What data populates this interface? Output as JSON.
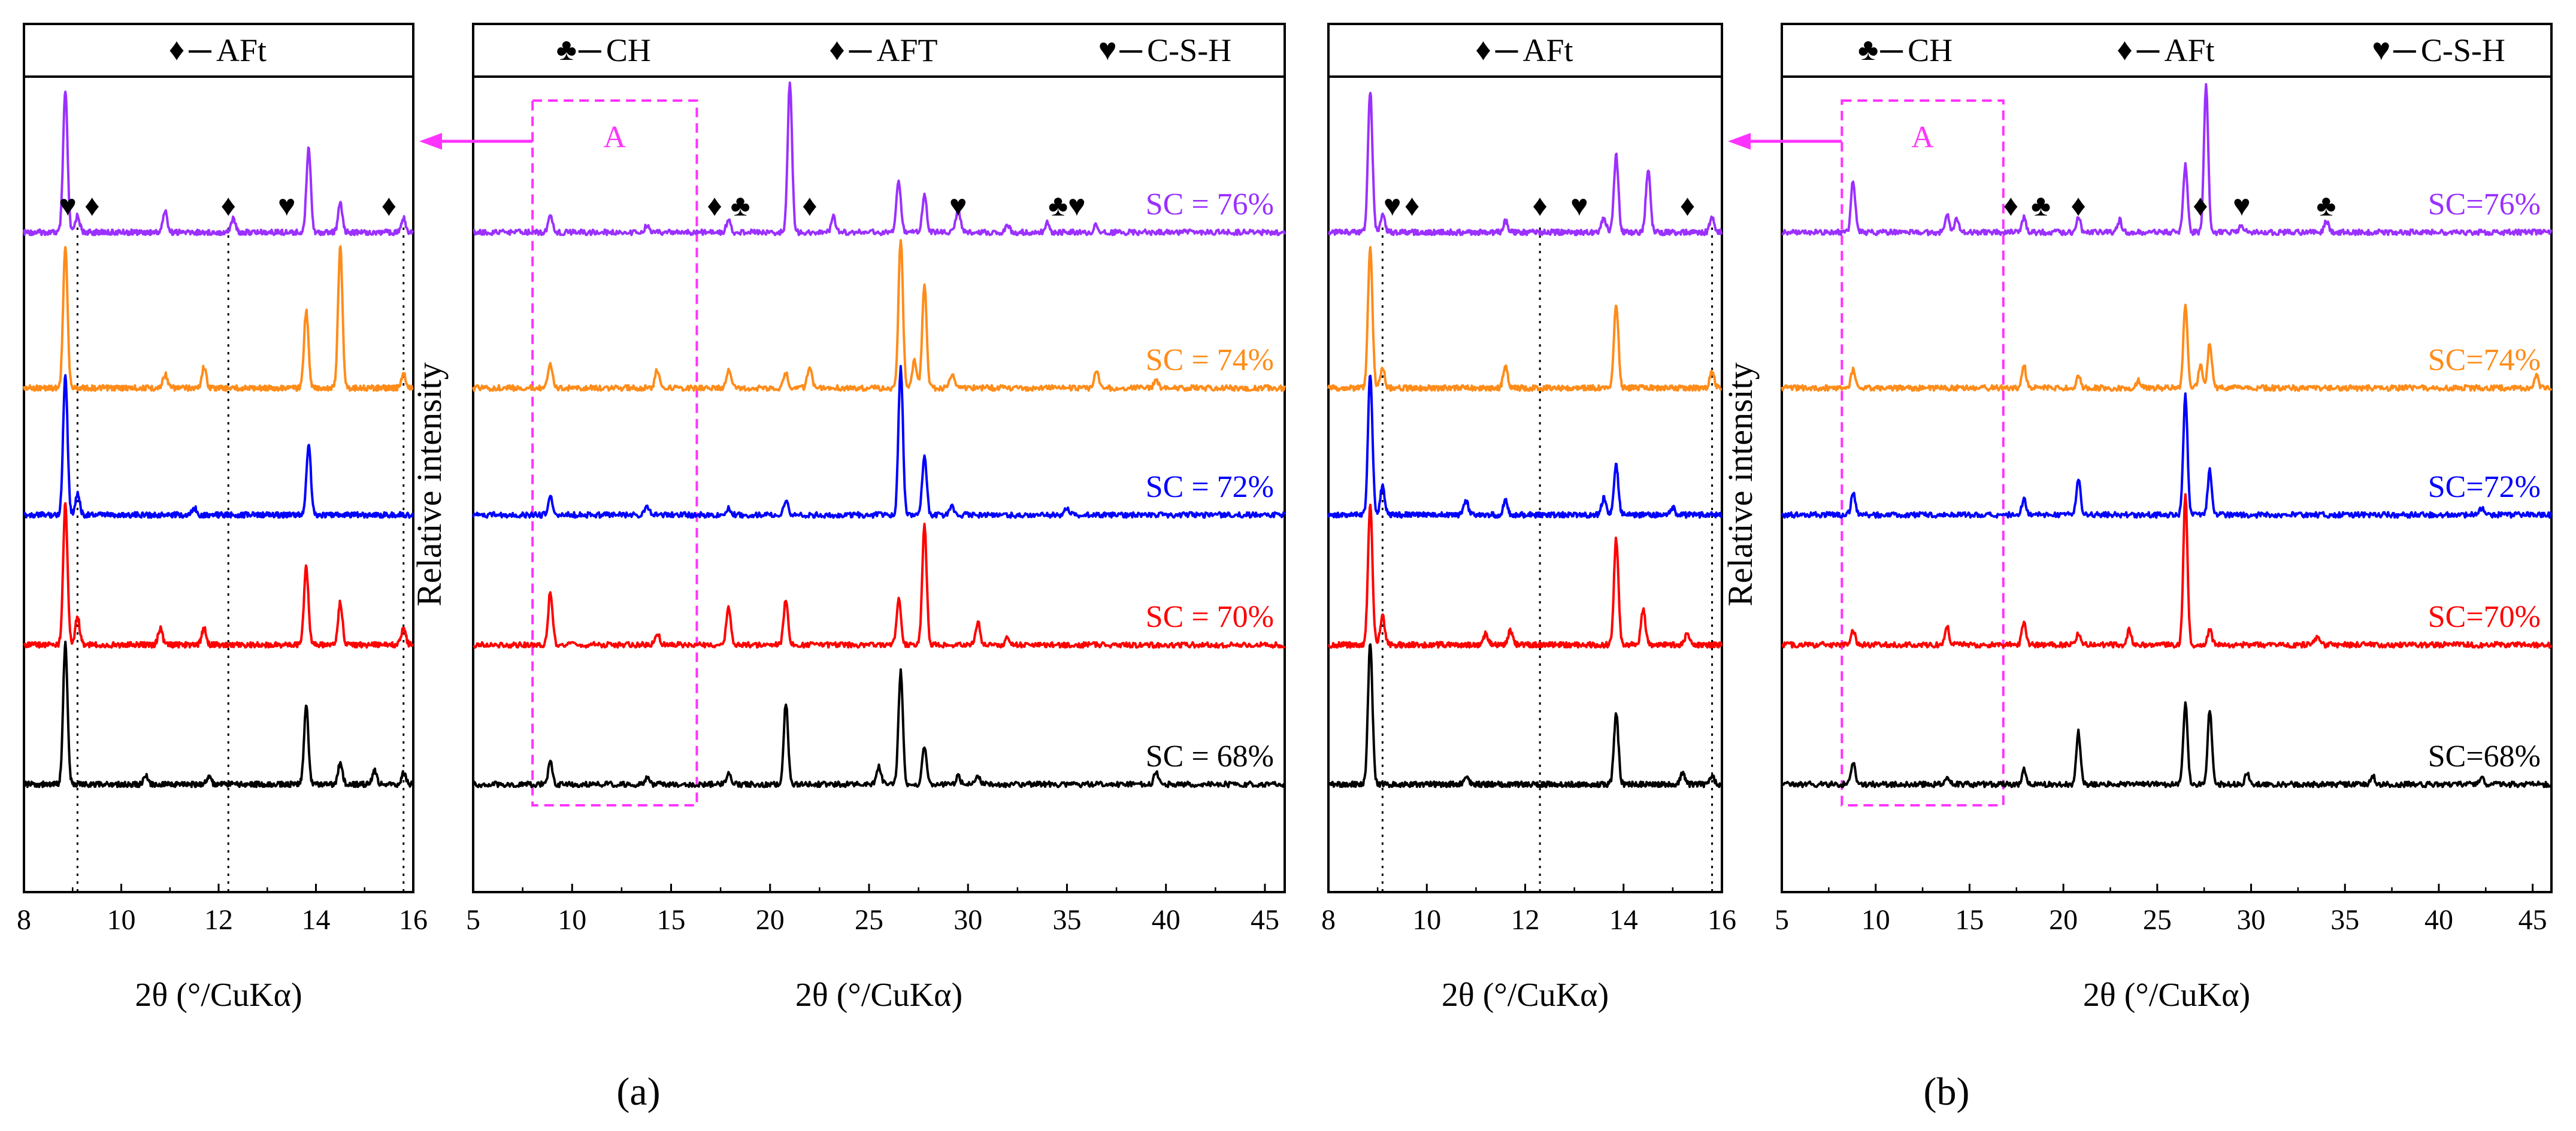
{
  "figure": {
    "panels": [
      {
        "label": "(a)",
        "letter": "a"
      },
      {
        "label": "(b)",
        "letter": "b"
      }
    ]
  },
  "chart_data": [
    {
      "type": "line",
      "panel": "a",
      "role": "inset",
      "xlabel": "2θ (°/CuKα)",
      "ylabel": "",
      "xlim": [
        8,
        16
      ],
      "xticks": [
        8,
        10,
        12,
        14,
        16
      ],
      "legend": [
        {
          "symbol": "♦",
          "text": "AFt"
        }
      ],
      "reference_lines_x": [
        9.1,
        12.2,
        15.8
      ],
      "annotations": [
        {
          "symbol": "♥",
          "x": 8.9
        },
        {
          "symbol": "♦",
          "x": 9.4
        },
        {
          "symbol": "♦",
          "x": 12.2
        },
        {
          "symbol": "♥",
          "x": 13.4
        },
        {
          "symbol": "♦",
          "x": 15.5
        }
      ],
      "series": [
        {
          "name": "SC = 76%",
          "color": "#9b30ff",
          "peaks": [
            [
              8.85,
              1.0
            ],
            [
              9.1,
              0.12
            ],
            [
              10.9,
              0.15
            ],
            [
              12.3,
              0.1
            ],
            [
              13.85,
              0.6
            ],
            [
              14.5,
              0.2
            ],
            [
              15.8,
              0.1
            ]
          ]
        },
        {
          "name": "SC = 74%",
          "color": "#ff8c1a",
          "peaks": [
            [
              8.85,
              1.0
            ],
            [
              10.9,
              0.1
            ],
            [
              11.7,
              0.15
            ],
            [
              13.8,
              0.55
            ],
            [
              14.5,
              1.0
            ],
            [
              15.8,
              0.1
            ]
          ]
        },
        {
          "name": "SC = 72%",
          "color": "#0000ff",
          "peaks": [
            [
              8.85,
              1.0
            ],
            [
              9.1,
              0.15
            ],
            [
              11.5,
              0.05
            ],
            [
              13.85,
              0.5
            ]
          ]
        },
        {
          "name": "SC = 70%",
          "color": "#ff0000",
          "peaks": [
            [
              8.85,
              1.0
            ],
            [
              9.1,
              0.2
            ],
            [
              10.8,
              0.12
            ],
            [
              11.7,
              0.12
            ],
            [
              13.8,
              0.55
            ],
            [
              14.5,
              0.3
            ],
            [
              15.8,
              0.12
            ]
          ]
        },
        {
          "name": "SC = 68%",
          "color": "#000000",
          "peaks": [
            [
              8.85,
              1.0
            ],
            [
              10.5,
              0.06
            ],
            [
              11.8,
              0.06
            ],
            [
              13.8,
              0.55
            ],
            [
              14.5,
              0.15
            ],
            [
              15.2,
              0.1
            ],
            [
              15.8,
              0.08
            ]
          ]
        }
      ]
    },
    {
      "type": "line",
      "panel": "a",
      "role": "main",
      "xlabel": "2θ (°/CuKα)",
      "ylabel": "Relative intensity",
      "xlim": [
        5,
        46
      ],
      "xticks": [
        5,
        10,
        15,
        20,
        25,
        30,
        35,
        40,
        45
      ],
      "legend": [
        {
          "symbol": "♣",
          "text": "CH"
        },
        {
          "symbol": "♦",
          "text": "AFT"
        },
        {
          "symbol": "♥",
          "text": "C-S-H"
        }
      ],
      "box": {
        "label": "A",
        "xlim": [
          8,
          16.3
        ]
      },
      "annotations": [
        {
          "symbol": "♦",
          "x": 17.2
        },
        {
          "symbol": "♣",
          "x": 18.5
        },
        {
          "symbol": "♦",
          "x": 22.0
        },
        {
          "symbol": "♥",
          "x": 29.5
        },
        {
          "symbol": "♣♥",
          "x": 35.0
        }
      ],
      "series": [
        {
          "name": "SC = 76%",
          "color": "#9b30ff",
          "peaks": [
            [
              8.9,
              0.1
            ],
            [
              13.8,
              0.05
            ],
            [
              17.9,
              0.08
            ],
            [
              21.0,
              1.0
            ],
            [
              23.2,
              0.1
            ],
            [
              26.5,
              0.35
            ],
            [
              27.8,
              0.25
            ],
            [
              29.5,
              0.15
            ],
            [
              32.0,
              0.05
            ],
            [
              34.0,
              0.06
            ],
            [
              36.5,
              0.05
            ]
          ]
        },
        {
          "name": "SC = 74%",
          "color": "#ff8c1a",
          "peaks": [
            [
              8.9,
              0.15
            ],
            [
              14.3,
              0.12
            ],
            [
              17.9,
              0.12
            ],
            [
              20.8,
              0.1
            ],
            [
              22.0,
              0.15
            ],
            [
              26.6,
              1.0
            ],
            [
              27.3,
              0.18
            ],
            [
              27.8,
              0.7
            ],
            [
              29.2,
              0.1
            ],
            [
              36.5,
              0.12
            ],
            [
              39.5,
              0.05
            ]
          ]
        },
        {
          "name": "SC = 72%",
          "color": "#0000ff",
          "peaks": [
            [
              8.9,
              0.12
            ],
            [
              13.8,
              0.05
            ],
            [
              17.9,
              0.05
            ],
            [
              20.8,
              0.1
            ],
            [
              26.6,
              1.0
            ],
            [
              27.8,
              0.4
            ],
            [
              29.2,
              0.05
            ],
            [
              35.0,
              0.05
            ]
          ]
        },
        {
          "name": "SC = 70%",
          "color": "#ff0000",
          "peaks": [
            [
              8.9,
              0.35
            ],
            [
              14.3,
              0.08
            ],
            [
              17.9,
              0.25
            ],
            [
              20.8,
              0.3
            ],
            [
              26.5,
              0.3
            ],
            [
              27.8,
              0.8
            ],
            [
              30.5,
              0.15
            ],
            [
              32.0,
              0.05
            ]
          ]
        },
        {
          "name": "SC = 68%",
          "color": "#000000",
          "peaks": [
            [
              8.9,
              0.15
            ],
            [
              13.8,
              0.05
            ],
            [
              17.9,
              0.08
            ],
            [
              20.8,
              0.55
            ],
            [
              25.5,
              0.12
            ],
            [
              26.6,
              0.75
            ],
            [
              27.8,
              0.25
            ],
            [
              29.5,
              0.05
            ],
            [
              30.5,
              0.05
            ],
            [
              39.5,
              0.08
            ]
          ]
        }
      ]
    },
    {
      "type": "line",
      "panel": "b",
      "role": "inset",
      "xlabel": "2θ (°/CuKα)",
      "ylabel": "",
      "xlim": [
        8,
        16
      ],
      "xticks": [
        8,
        10,
        12,
        14,
        16
      ],
      "legend": [
        {
          "symbol": "♦",
          "text": "AFt"
        }
      ],
      "reference_lines_x": [
        9.1,
        12.3,
        15.8
      ],
      "annotations": [
        {
          "symbol": "♥",
          "x": 9.3
        },
        {
          "symbol": "♦",
          "x": 9.7
        },
        {
          "symbol": "♦",
          "x": 12.3
        },
        {
          "symbol": "♥",
          "x": 13.1
        },
        {
          "symbol": "♦",
          "x": 15.3
        }
      ],
      "series": [
        {
          "name": "SC=76%",
          "color": "#9b30ff",
          "peaks": [
            [
              8.85,
              1.0
            ],
            [
              9.1,
              0.12
            ],
            [
              11.6,
              0.08
            ],
            [
              13.6,
              0.1
            ],
            [
              13.85,
              0.55
            ],
            [
              14.5,
              0.45
            ],
            [
              15.8,
              0.1
            ]
          ]
        },
        {
          "name": "SC=74%",
          "color": "#ff8c1a",
          "peaks": [
            [
              8.85,
              1.0
            ],
            [
              9.1,
              0.15
            ],
            [
              11.6,
              0.15
            ],
            [
              13.85,
              0.6
            ],
            [
              15.8,
              0.12
            ]
          ]
        },
        {
          "name": "SC=72%",
          "color": "#0000ff",
          "peaks": [
            [
              8.85,
              1.0
            ],
            [
              9.1,
              0.2
            ],
            [
              10.8,
              0.1
            ],
            [
              11.6,
              0.1
            ],
            [
              13.6,
              0.12
            ],
            [
              13.85,
              0.35
            ],
            [
              15.0,
              0.05
            ]
          ]
        },
        {
          "name": "SC=70%",
          "color": "#ff0000",
          "peaks": [
            [
              8.85,
              1.0
            ],
            [
              9.1,
              0.2
            ],
            [
              11.2,
              0.08
            ],
            [
              11.7,
              0.1
            ],
            [
              13.85,
              0.75
            ],
            [
              14.4,
              0.25
            ],
            [
              15.3,
              0.08
            ]
          ]
        },
        {
          "name": "SC=68%",
          "color": "#000000",
          "peaks": [
            [
              8.85,
              1.0
            ],
            [
              10.8,
              0.06
            ],
            [
              13.85,
              0.5
            ],
            [
              15.2,
              0.08
            ],
            [
              15.8,
              0.06
            ]
          ]
        }
      ]
    },
    {
      "type": "line",
      "panel": "b",
      "role": "main",
      "xlabel": "2θ (°/CuKα)",
      "ylabel": "Relative intensity",
      "xlim": [
        5,
        46
      ],
      "xticks": [
        5,
        10,
        15,
        20,
        25,
        30,
        35,
        40,
        45
      ],
      "legend": [
        {
          "symbol": "♣",
          "text": "CH"
        },
        {
          "symbol": "♦",
          "text": "AFt"
        },
        {
          "symbol": "♥",
          "text": "C-S-H"
        }
      ],
      "box": {
        "label": "A",
        "xlim": [
          8.2,
          16.8
        ]
      },
      "annotations": [
        {
          "symbol": "♦",
          "x": 17.2
        },
        {
          "symbol": "♣",
          "x": 18.8
        },
        {
          "symbol": "♦",
          "x": 20.8
        },
        {
          "symbol": "♦",
          "x": 27.3
        },
        {
          "symbol": "♥",
          "x": 29.5
        },
        {
          "symbol": "♣",
          "x": 34.0
        }
      ],
      "series": [
        {
          "name": "SC=76%",
          "color": "#9b30ff",
          "peaks": [
            [
              8.8,
              0.35
            ],
            [
              13.8,
              0.12
            ],
            [
              14.3,
              0.1
            ],
            [
              17.9,
              0.1
            ],
            [
              20.8,
              0.1
            ],
            [
              23.0,
              0.08
            ],
            [
              26.5,
              0.45
            ],
            [
              27.6,
              1.0
            ],
            [
              29.5,
              0.05
            ],
            [
              34.0,
              0.08
            ]
          ]
        },
        {
          "name": "SC=74%",
          "color": "#ff8c1a",
          "peaks": [
            [
              8.8,
              0.12
            ],
            [
              17.9,
              0.15
            ],
            [
              20.8,
              0.08
            ],
            [
              24.0,
              0.05
            ],
            [
              26.5,
              0.55
            ],
            [
              27.3,
              0.15
            ],
            [
              27.8,
              0.3
            ],
            [
              45.2,
              0.08
            ]
          ]
        },
        {
          "name": "SC=72%",
          "color": "#0000ff",
          "peaks": [
            [
              8.8,
              0.15
            ],
            [
              17.9,
              0.1
            ],
            [
              20.8,
              0.25
            ],
            [
              26.5,
              0.8
            ],
            [
              27.8,
              0.3
            ],
            [
              42.3,
              0.05
            ]
          ]
        },
        {
          "name": "SC=70%",
          "color": "#ff0000",
          "peaks": [
            [
              8.8,
              0.1
            ],
            [
              13.8,
              0.12
            ],
            [
              17.9,
              0.15
            ],
            [
              20.8,
              0.08
            ],
            [
              23.5,
              0.1
            ],
            [
              26.5,
              1.0
            ],
            [
              27.8,
              0.1
            ],
            [
              33.5,
              0.05
            ]
          ]
        },
        {
          "name": "SC=68%",
          "color": "#000000",
          "peaks": [
            [
              8.8,
              0.15
            ],
            [
              13.8,
              0.05
            ],
            [
              17.9,
              0.1
            ],
            [
              20.8,
              0.35
            ],
            [
              26.5,
              0.55
            ],
            [
              27.8,
              0.5
            ],
            [
              29.8,
              0.08
            ],
            [
              36.5,
              0.05
            ],
            [
              42.3,
              0.05
            ]
          ]
        }
      ]
    }
  ]
}
